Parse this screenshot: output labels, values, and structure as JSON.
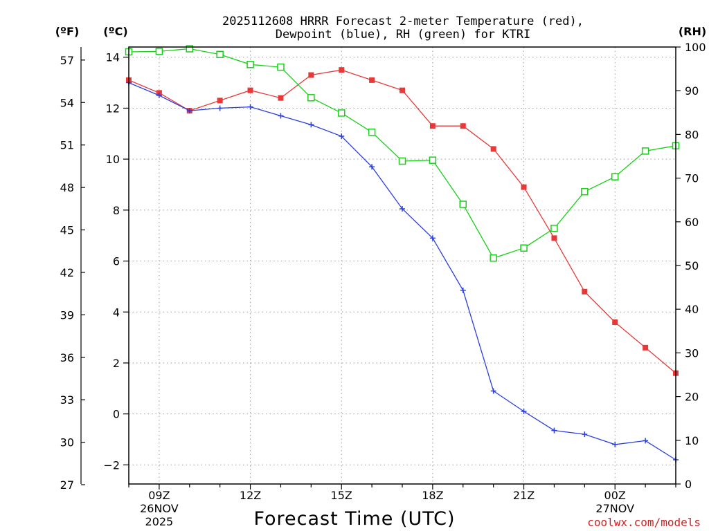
{
  "chart_data": {
    "type": "line",
    "title": "2025112608 HRRR Forecast 2-meter Temperature (red),",
    "subtitle": "Dewpoint (blue), RH (green) for KTRI",
    "xlabel": "Forecast Time (UTC)",
    "unit_labels": {
      "fahrenheit": "(ºF)",
      "celsius": "(ºC)",
      "rh": "(RH)"
    },
    "credit": "coolwx.com/models",
    "x_hours": [
      8,
      9,
      10,
      11,
      12,
      13,
      14,
      15,
      16,
      17,
      18,
      19,
      20,
      21,
      22,
      23,
      24,
      25,
      26
    ],
    "xlim": [
      8,
      26
    ],
    "x_ticks": [
      {
        "hour": 9,
        "label": "09Z",
        "date": "26NOV",
        "year": "2025"
      },
      {
        "hour": 12,
        "label": "12Z"
      },
      {
        "hour": 15,
        "label": "15Z"
      },
      {
        "hour": 18,
        "label": "18Z"
      },
      {
        "hour": 21,
        "label": "21Z"
      },
      {
        "hour": 24,
        "label": "00Z",
        "date": "27NOV"
      }
    ],
    "ylim_c": [
      -2.75,
      14.4
    ],
    "yticks_c": [
      -2,
      0,
      2,
      4,
      6,
      8,
      10,
      12,
      14
    ],
    "yticks_c_labels": [
      "−2",
      "0",
      "2",
      "4",
      "6",
      "8",
      "10",
      "12",
      "14"
    ],
    "ylim_rh": [
      0,
      100
    ],
    "yticks_rh": [
      0,
      10,
      20,
      30,
      40,
      50,
      60,
      70,
      80,
      90,
      100
    ],
    "yticks_f": [
      27,
      30,
      33,
      36,
      39,
      42,
      45,
      48,
      51,
      54,
      57
    ],
    "series": [
      {
        "name": "Temperature",
        "axis": "C",
        "color": "#e83838",
        "marker": "filled-square",
        "values": [
          13.1,
          12.6,
          11.9,
          12.3,
          12.7,
          12.4,
          13.3,
          13.5,
          13.1,
          12.7,
          11.3,
          11.3,
          10.4,
          8.9,
          6.9,
          4.8,
          3.6,
          2.6,
          1.6
        ]
      },
      {
        "name": "Dewpoint",
        "axis": "C",
        "color": "#2a3ee0",
        "marker": "plus",
        "values": [
          13.0,
          12.5,
          11.9,
          12.0,
          12.05,
          11.7,
          11.35,
          10.9,
          9.7,
          8.05,
          6.9,
          4.85,
          0.9,
          0.1,
          -0.65,
          -0.8,
          -1.2,
          -1.05,
          -1.8
        ]
      },
      {
        "name": "RH",
        "axis": "RH",
        "color": "#18d018",
        "marker": "open-square",
        "values": [
          98.9,
          99.0,
          99.6,
          98.3,
          96.0,
          95.4,
          88.4,
          84.9,
          80.5,
          73.9,
          74.1,
          64.0,
          51.7,
          54.0,
          58.5,
          66.9,
          70.3,
          76.2,
          77.4
        ]
      }
    ]
  }
}
